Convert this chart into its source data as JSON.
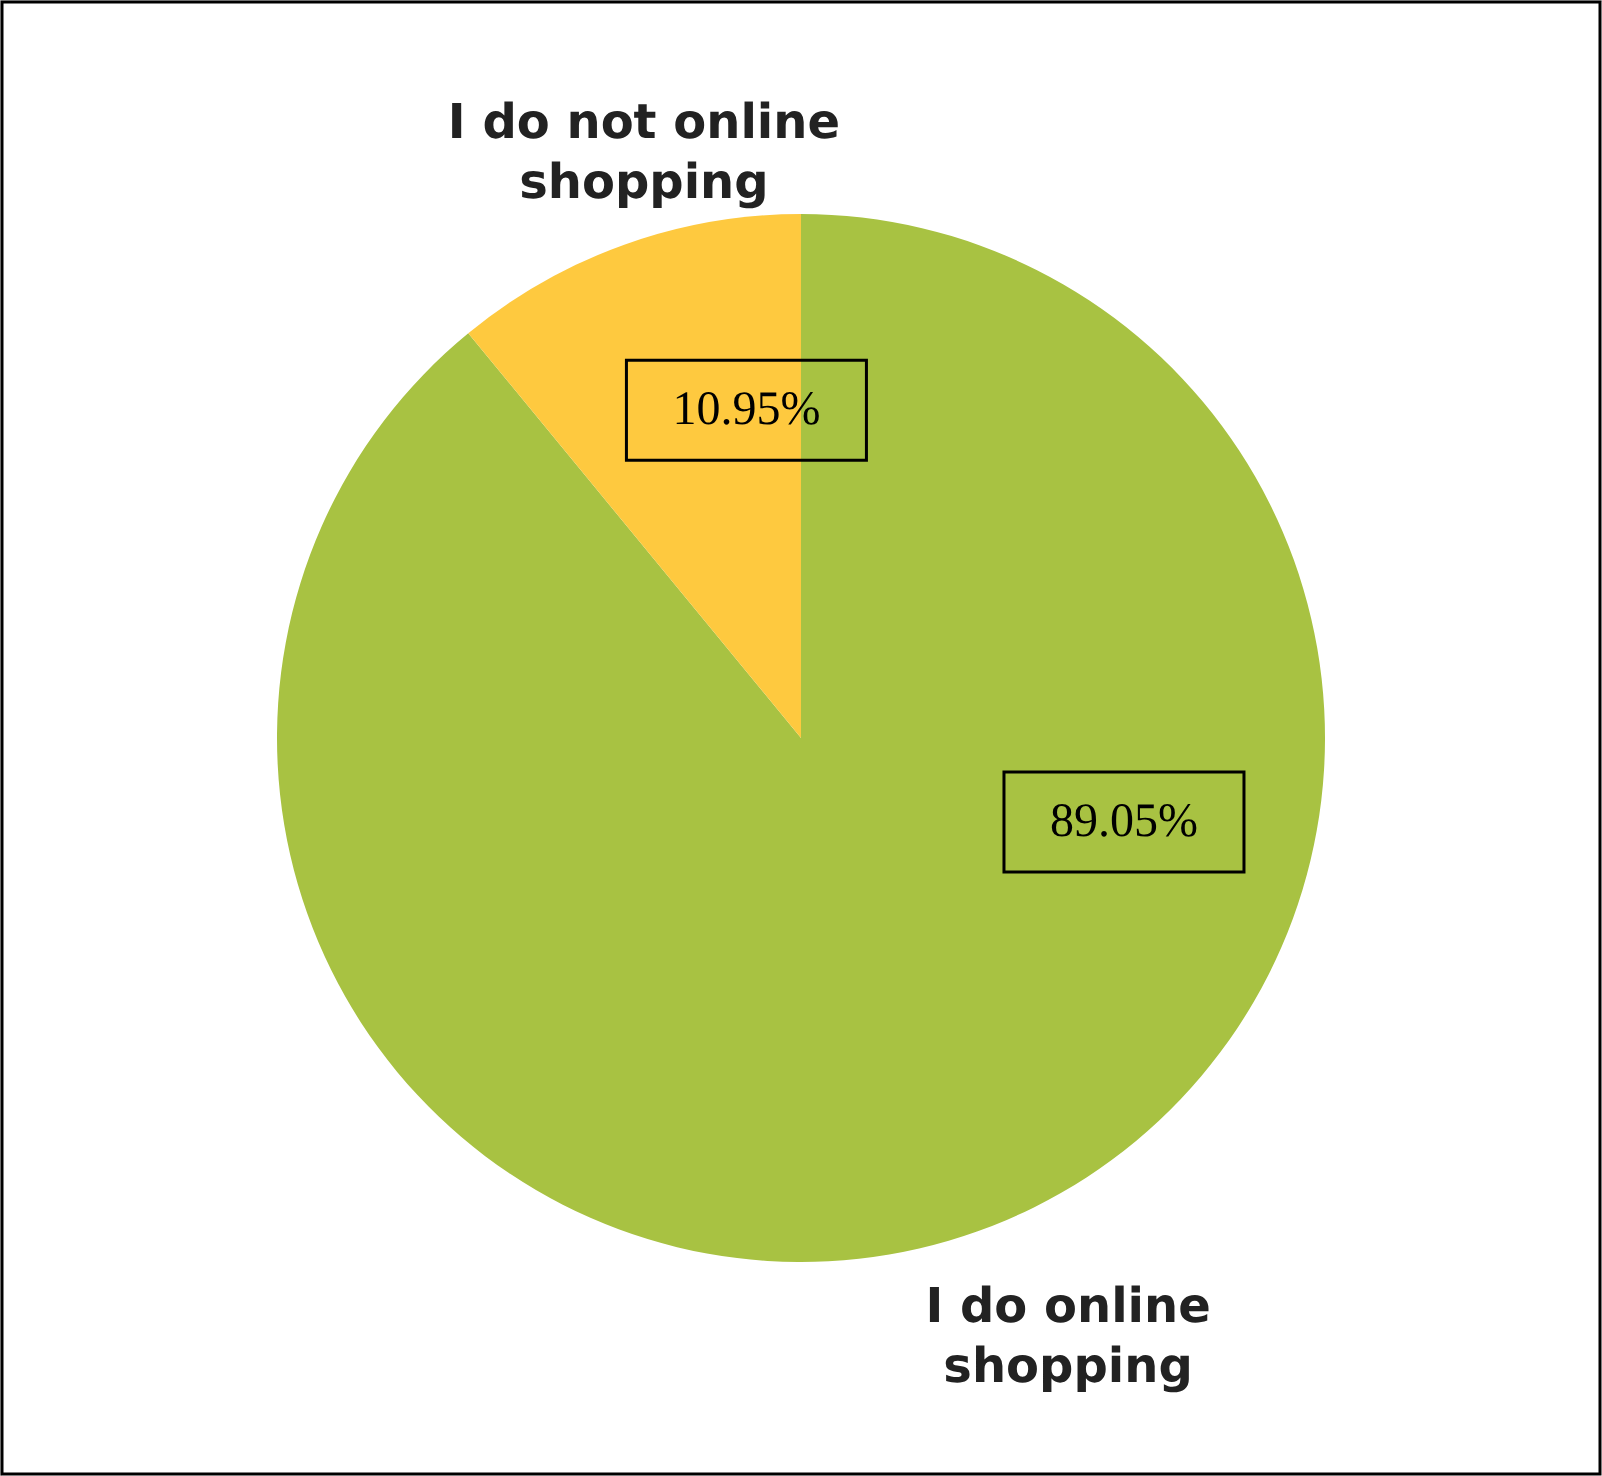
{
  "chart_data": {
    "type": "pie",
    "categories": [
      "I do online shopping",
      "I do not online shopping"
    ],
    "values": [
      89.05,
      10.95
    ],
    "colors": [
      "#a8c242",
      "#fec93f"
    ],
    "value_labels": [
      "89.05%",
      "10.95%"
    ]
  }
}
